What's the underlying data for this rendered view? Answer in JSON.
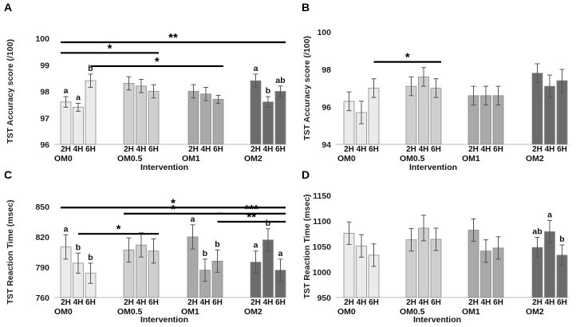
{
  "chart_data": [
    {
      "panel_letter": "A",
      "type": "bar",
      "ylabel": "TST Accuracy score (/100)",
      "xlabel": "Intervention",
      "ylim": [
        96,
        100
      ],
      "yticks": [
        "96",
        "97",
        "98",
        "99",
        "100"
      ],
      "groups": [
        {
          "name": "OM0",
          "bars": [
            {
              "label": "2H",
              "value": 97.6,
              "error": 0.2,
              "letter": "a"
            },
            {
              "label": "4H",
              "value": 97.4,
              "error": 0.15,
              "letter": "a"
            },
            {
              "label": "6H",
              "value": 98.4,
              "error": 0.25,
              "letter": "b"
            }
          ]
        },
        {
          "name": "OM0.5",
          "bars": [
            {
              "label": "2H",
              "value": 98.3,
              "error": 0.25,
              "letter": ""
            },
            {
              "label": "4H",
              "value": 98.2,
              "error": 0.25,
              "letter": ""
            },
            {
              "label": "6H",
              "value": 98.0,
              "error": 0.25,
              "letter": ""
            }
          ]
        },
        {
          "name": "OM1",
          "bars": [
            {
              "label": "2H",
              "value": 98.0,
              "error": 0.25,
              "letter": ""
            },
            {
              "label": "4H",
              "value": 97.9,
              "error": 0.25,
              "letter": ""
            },
            {
              "label": "6H",
              "value": 97.7,
              "error": 0.15,
              "letter": ""
            }
          ]
        },
        {
          "name": "OM2",
          "bars": [
            {
              "label": "2H",
              "value": 98.4,
              "error": 0.25,
              "letter": "a"
            },
            {
              "label": "4H",
              "value": 97.6,
              "error": 0.2,
              "letter": "b"
            },
            {
              "label": "6H",
              "value": 98.0,
              "error": 0.2,
              "letter": "ab"
            }
          ]
        }
      ],
      "significance": [
        {
          "label": "**",
          "from": {
            "group": 0,
            "bar": 0
          },
          "to": {
            "group": 3,
            "bar": 2
          },
          "level": 99.85
        },
        {
          "label": "*",
          "from": {
            "group": 0,
            "bar": 0
          },
          "to": {
            "group": 1,
            "bar": 2
          },
          "level": 99.45
        },
        {
          "label": "*",
          "from": {
            "group": 0,
            "bar": 2
          },
          "to": {
            "group": 2,
            "bar": 2
          },
          "level": 98.95
        }
      ]
    },
    {
      "panel_letter": "B",
      "type": "bar",
      "ylabel": "TST Accuracy score (/100)",
      "xlabel": "Intervention",
      "ylim": [
        94,
        100
      ],
      "yticks": [
        "94",
        "96",
        "98",
        "100"
      ],
      "groups": [
        {
          "name": "OM0",
          "bars": [
            {
              "label": "2H",
              "value": 96.3,
              "error": 0.5,
              "letter": ""
            },
            {
              "label": "4H",
              "value": 95.7,
              "error": 0.6,
              "letter": ""
            },
            {
              "label": "6H",
              "value": 97.0,
              "error": 0.5,
              "letter": ""
            }
          ]
        },
        {
          "name": "OM0.5",
          "bars": [
            {
              "label": "2H",
              "value": 97.1,
              "error": 0.5,
              "letter": ""
            },
            {
              "label": "4H",
              "value": 97.6,
              "error": 0.5,
              "letter": ""
            },
            {
              "label": "6H",
              "value": 97.0,
              "error": 0.5,
              "letter": ""
            }
          ]
        },
        {
          "name": "OM1",
          "bars": [
            {
              "label": "2H",
              "value": 96.6,
              "error": 0.5,
              "letter": ""
            },
            {
              "label": "4H",
              "value": 96.6,
              "error": 0.5,
              "letter": ""
            },
            {
              "label": "6H",
              "value": 96.6,
              "error": 0.5,
              "letter": ""
            }
          ]
        },
        {
          "name": "OM2",
          "bars": [
            {
              "label": "2H",
              "value": 97.8,
              "error": 0.5,
              "letter": ""
            },
            {
              "label": "4H",
              "value": 97.1,
              "error": 0.6,
              "letter": ""
            },
            {
              "label": "6H",
              "value": 97.4,
              "error": 0.6,
              "letter": ""
            }
          ]
        }
      ],
      "significance": [
        {
          "label": "*",
          "from": {
            "group": 0,
            "bar": 2
          },
          "to": {
            "group": 1,
            "bar": 2
          },
          "level": 98.4
        }
      ]
    },
    {
      "panel_letter": "C",
      "type": "bar",
      "ylabel": "TST Reaction Time (msec)",
      "xlabel": "Intervention",
      "ylim": [
        760,
        850
      ],
      "yticks": [
        "760",
        "790",
        "820",
        "850"
      ],
      "groups": [
        {
          "name": "OM0",
          "bars": [
            {
              "label": "2H",
              "value": 810,
              "error": 12,
              "letter": "a"
            },
            {
              "label": "4H",
              "value": 794,
              "error": 10,
              "letter": "b"
            },
            {
              "label": "6H",
              "value": 784,
              "error": 10,
              "letter": "b"
            }
          ]
        },
        {
          "name": "OM0.5",
          "bars": [
            {
              "label": "2H",
              "value": 807,
              "error": 12,
              "letter": ""
            },
            {
              "label": "4H",
              "value": 812,
              "error": 12,
              "letter": ""
            },
            {
              "label": "6H",
              "value": 806,
              "error": 12,
              "letter": ""
            }
          ]
        },
        {
          "name": "OM1",
          "bars": [
            {
              "label": "2H",
              "value": 820,
              "error": 12,
              "letter": "a"
            },
            {
              "label": "4H",
              "value": 787,
              "error": 11,
              "letter": "b"
            },
            {
              "label": "6H",
              "value": 796,
              "error": 11,
              "letter": "b"
            }
          ]
        },
        {
          "name": "OM2",
          "bars": [
            {
              "label": "2H",
              "value": 795,
              "error": 11,
              "letter": "a"
            },
            {
              "label": "4H",
              "value": 817,
              "error": 11,
              "letter": "b"
            },
            {
              "label": "6H",
              "value": 787,
              "error": 11,
              "letter": "a"
            }
          ]
        }
      ],
      "significance": [
        {
          "label": "*",
          "from": {
            "group": 0,
            "bar": 0
          },
          "to": {
            "group": 3,
            "bar": 2
          },
          "level": 849
        },
        {
          "label": "*",
          "from": {
            "group": 1,
            "bar": 0
          },
          "to": {
            "group": 2,
            "bar": 2
          },
          "level": 843
        },
        {
          "label": "***",
          "from": {
            "group": 2,
            "bar": 2
          },
          "to": {
            "group": 3,
            "bar": 2
          },
          "level": 843
        },
        {
          "label": "**",
          "from": {
            "group": 2,
            "bar": 2
          },
          "to": {
            "group": 3,
            "bar": 2
          },
          "level": 835
        },
        {
          "label": "*",
          "from": {
            "group": 0,
            "bar": 1
          },
          "to": {
            "group": 1,
            "bar": 2
          },
          "level": 823
        }
      ]
    },
    {
      "panel_letter": "D",
      "type": "bar",
      "ylabel": "TST Reaction Time (msec)",
      "xlabel": "Intervention",
      "ylim": [
        950,
        1150
      ],
      "yticks": [
        "950",
        "1000",
        "1050",
        "1100",
        "1150"
      ],
      "groups": [
        {
          "name": "OM0",
          "bars": [
            {
              "label": "2H",
              "value": 1076,
              "error": 22,
              "letter": ""
            },
            {
              "label": "4H",
              "value": 1051,
              "error": 22,
              "letter": ""
            },
            {
              "label": "6H",
              "value": 1033,
              "error": 22,
              "letter": ""
            }
          ]
        },
        {
          "name": "OM0.5",
          "bars": [
            {
              "label": "2H",
              "value": 1063,
              "error": 22,
              "letter": ""
            },
            {
              "label": "4H",
              "value": 1086,
              "error": 25,
              "letter": ""
            },
            {
              "label": "6H",
              "value": 1064,
              "error": 22,
              "letter": ""
            }
          ]
        },
        {
          "name": "OM1",
          "bars": [
            {
              "label": "2H",
              "value": 1082,
              "error": 22,
              "letter": ""
            },
            {
              "label": "4H",
              "value": 1041,
              "error": 22,
              "letter": ""
            },
            {
              "label": "6H",
              "value": 1047,
              "error": 22,
              "letter": ""
            }
          ]
        },
        {
          "name": "OM2",
          "bars": [
            {
              "label": "2H",
              "value": 1048,
              "error": 20,
              "letter": "ab"
            },
            {
              "label": "4H",
              "value": 1079,
              "error": 22,
              "letter": "a"
            },
            {
              "label": "6H",
              "value": 1033,
              "error": 20,
              "letter": "b"
            }
          ]
        }
      ],
      "significance": []
    }
  ],
  "group_colors": [
    "#ebebeb",
    "#cfcfcf",
    "#a9a9a9",
    "#6b6b6b"
  ],
  "bar_border_color": "#8a8a8a",
  "line_color": "#000000"
}
